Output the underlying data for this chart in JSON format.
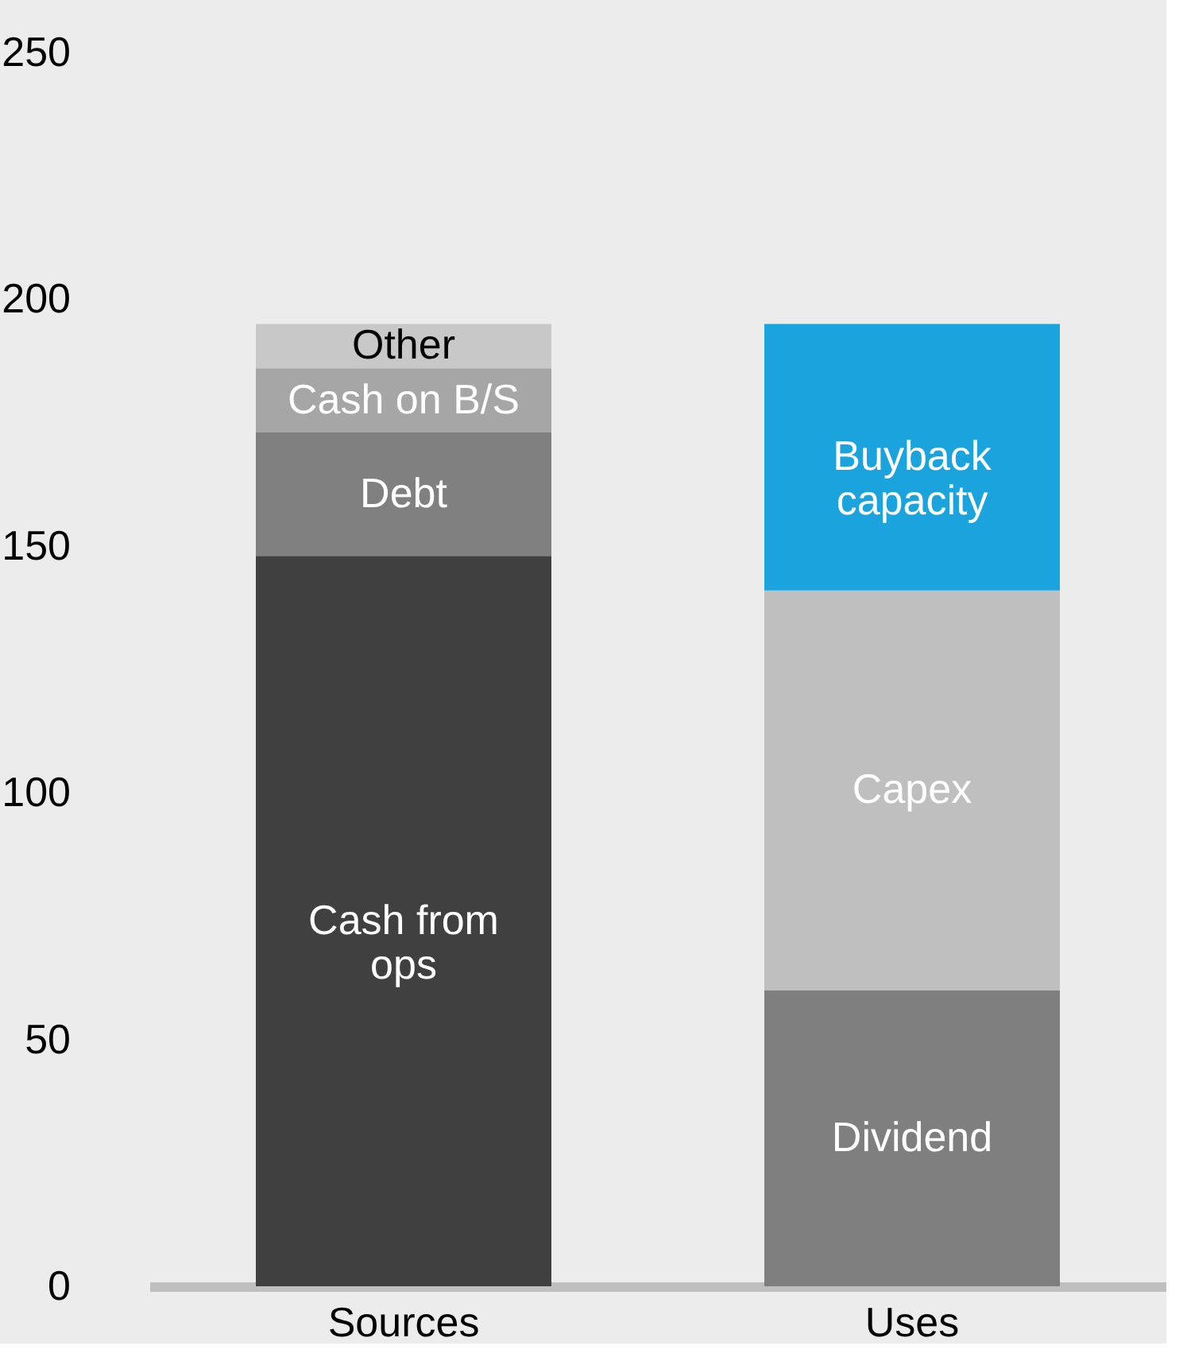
{
  "chart_data": {
    "type": "bar",
    "stacked": true,
    "data_labels": false,
    "categories": [
      "Sources",
      "Uses"
    ],
    "series": [
      {
        "name": "Cash from ops",
        "color": "#404040",
        "values": [
          148,
          null
        ]
      },
      {
        "name": "Debt",
        "color": "#808080",
        "values": [
          25,
          null
        ]
      },
      {
        "name": "Cash on B/S",
        "color": "#a6a6a6",
        "values": [
          13,
          null
        ]
      },
      {
        "name": "Other",
        "color": "#c8c8c8",
        "values": [
          9,
          null
        ]
      },
      {
        "name": "Dividend",
        "color": "#7f7f7f",
        "values": [
          null,
          60
        ]
      },
      {
        "name": "Capex",
        "color": "#bfbfbf",
        "values": [
          null,
          81
        ]
      },
      {
        "name": "Buyback capacity",
        "color": "#1aa3dc",
        "values": [
          null,
          54
        ]
      }
    ],
    "ylim": [
      0,
      250
    ],
    "yticks": [
      0,
      50,
      100,
      150,
      200,
      250
    ],
    "grid": false,
    "legend": false
  }
}
